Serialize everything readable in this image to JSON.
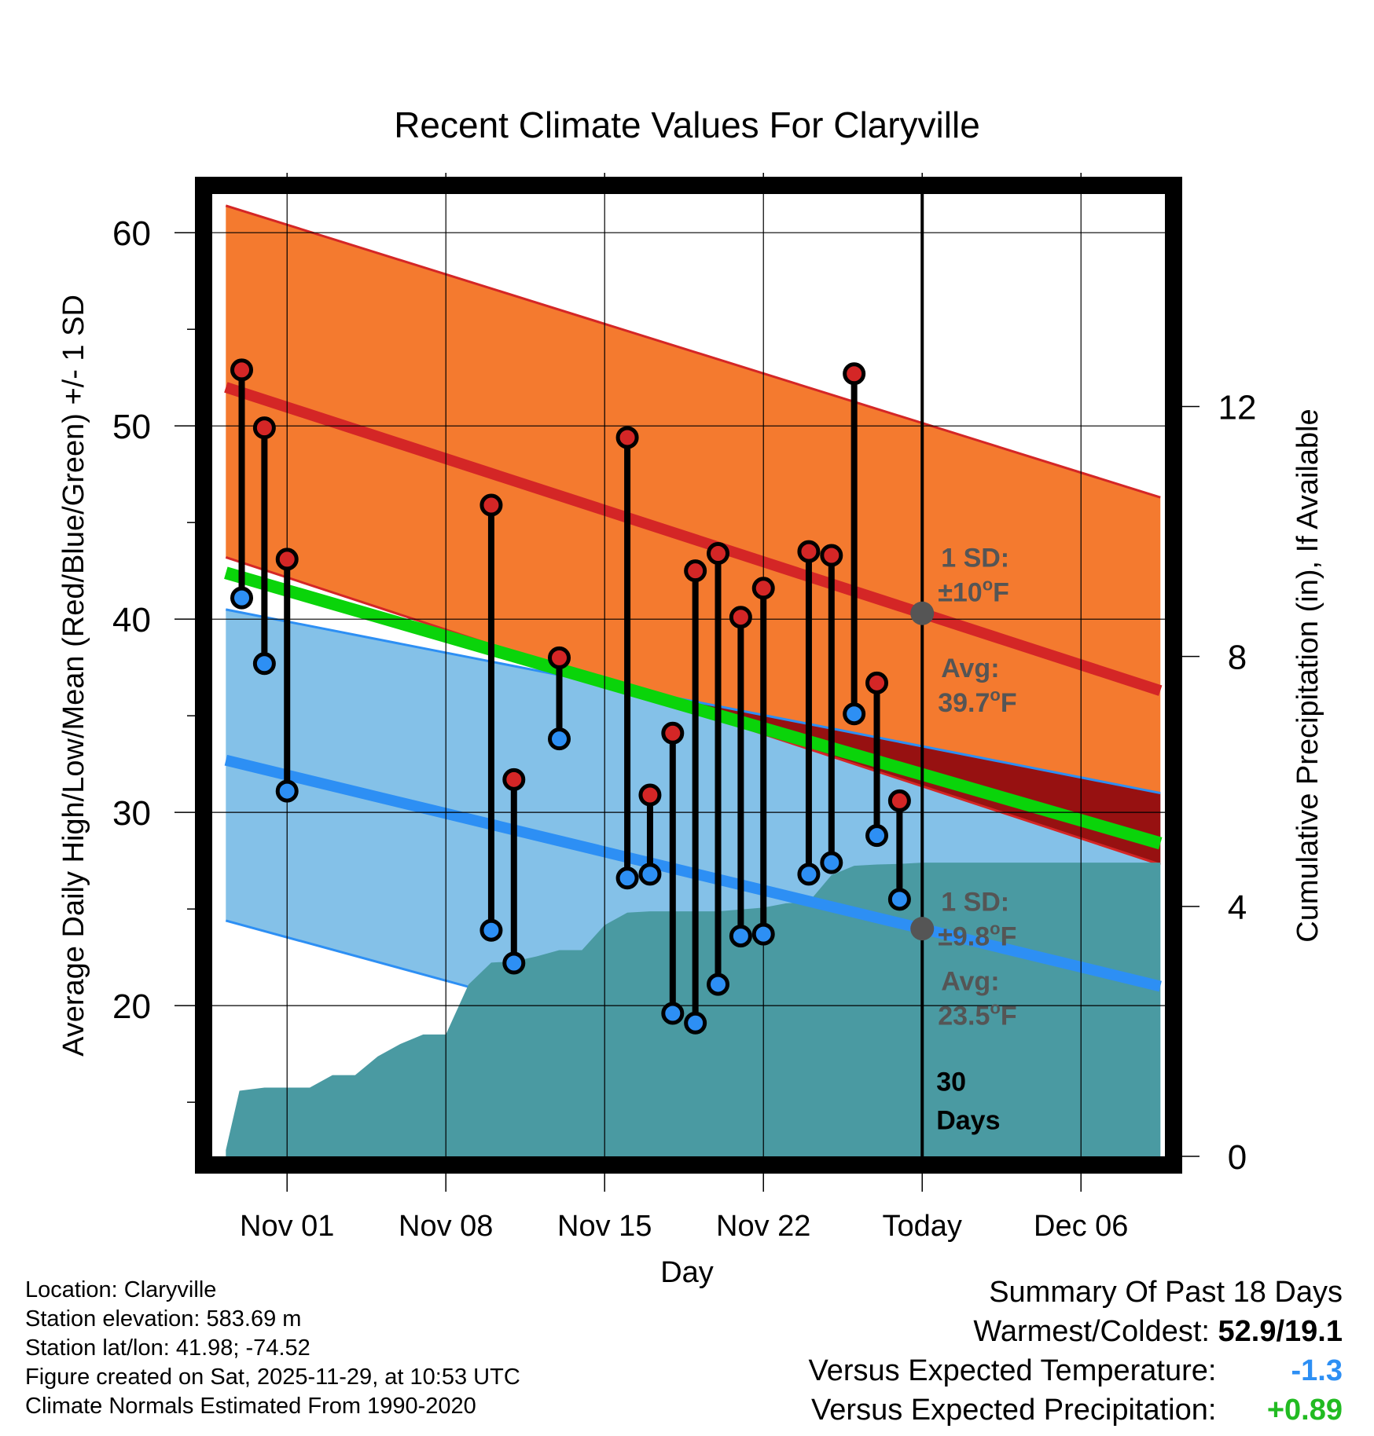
{
  "chart_data": {
    "type": "line",
    "title": "Recent Climate Values For Claryville",
    "xlabel": "Day",
    "ylabel_left": "Average Daily High/Low/Mean (Red/Blue/Green) +/- 1 SD",
    "ylabel_right": "Cumulative Precipitation (in), If Available",
    "x_unit": "day offset from Nov 01",
    "xlim": [
      -3.3,
      38.7
    ],
    "ylim": [
      12.2,
      62
    ],
    "precip_ylim": [
      0,
      15.4
    ],
    "x_ticks": [
      {
        "x": 0,
        "label": "Nov 01"
      },
      {
        "x": 7,
        "label": "Nov 08"
      },
      {
        "x": 14,
        "label": "Nov 15"
      },
      {
        "x": 21,
        "label": "Nov 22"
      },
      {
        "x": 28,
        "label": "Today"
      },
      {
        "x": 35,
        "label": "Dec 06"
      }
    ],
    "y_ticks": [
      20,
      30,
      40,
      50,
      60
    ],
    "y_minor_ticks": [
      15,
      25,
      35,
      45,
      55
    ],
    "precip_ticks": [
      0,
      4,
      8,
      12
    ],
    "normals": {
      "x": [
        -2.7,
        38.5
      ],
      "high_mean": [
        52.0,
        36.3
      ],
      "high_upper": [
        61.4,
        46.3
      ],
      "high_lower": [
        43.2,
        27.3
      ],
      "low_mean": [
        32.7,
        21.0
      ],
      "low_upper": [
        40.5,
        31.0
      ],
      "low_lower": [
        24.4,
        11.2
      ],
      "mean": [
        42.4,
        28.4
      ]
    },
    "series": [
      {
        "name": "Daily High",
        "color": "#c62a2a",
        "x": [
          -2,
          -1,
          0,
          9,
          10,
          12,
          15,
          16,
          17,
          18,
          19,
          20,
          21,
          23,
          24,
          25,
          26,
          27
        ],
        "values": [
          52.9,
          49.9,
          43.1,
          45.9,
          31.7,
          38.0,
          49.4,
          30.9,
          34.1,
          42.5,
          43.4,
          40.1,
          41.6,
          43.5,
          43.3,
          52.7,
          36.7,
          30.6
        ]
      },
      {
        "name": "Daily Low",
        "color": "#2a8cf0",
        "x": [
          -2,
          -1,
          0,
          9,
          10,
          12,
          15,
          16,
          17,
          18,
          19,
          20,
          21,
          23,
          24,
          25,
          26,
          27
        ],
        "values": [
          41.1,
          37.7,
          31.1,
          23.9,
          22.2,
          33.8,
          26.6,
          26.8,
          19.6,
          19.1,
          21.1,
          23.6,
          23.7,
          26.8,
          27.4,
          35.1,
          28.8,
          25.5
        ]
      }
    ],
    "precipitation": {
      "x": [
        -2.7,
        -2.1,
        -1,
        0,
        1,
        2,
        3,
        4,
        5,
        6,
        7,
        8,
        9,
        10,
        11,
        12,
        13,
        14,
        15,
        16,
        17,
        18,
        19,
        20,
        21,
        22,
        23,
        24,
        25,
        26,
        27,
        28,
        38.5
      ],
      "values": [
        0.1,
        1.05,
        1.1,
        1.1,
        1.1,
        1.3,
        1.3,
        1.6,
        1.8,
        1.95,
        1.95,
        2.75,
        3.1,
        3.12,
        3.2,
        3.3,
        3.3,
        3.7,
        3.9,
        3.92,
        3.92,
        3.92,
        3.92,
        3.95,
        3.98,
        4.05,
        4.07,
        4.5,
        4.65,
        4.67,
        4.68,
        4.7,
        4.7
      ]
    },
    "today_x": 28,
    "days_label": [
      "30",
      "Days"
    ],
    "annotations": {
      "high_sd": {
        "line1": "1 SD:",
        "line2": "±10",
        "unit": "F"
      },
      "high_avg": {
        "line1": "Avg:",
        "line2": "39.7",
        "unit": "F",
        "value": 39.7
      },
      "low_sd": {
        "line1": "1 SD:",
        "line2": "±9.8",
        "unit": "F"
      },
      "low_avg": {
        "line1": "Avg:",
        "line2": "23.5",
        "unit": "F",
        "value": 23.5
      }
    },
    "colors": {
      "high_band": "#f47a2f",
      "high_line": "#d42626",
      "low_band": "#84c1e8",
      "low_line": "#2d8ff4",
      "overlap": "#971111",
      "mean_line": "#0ad40a",
      "precip": "#4a9aa2",
      "annotation": "#555555"
    }
  },
  "footer_left": {
    "location": "Location: Claryville",
    "elevation": "Station elevation: 583.69 m",
    "latlon": "Station lat/lon: 41.98; -74.52",
    "created": "Figure created on Sat, 2025-11-29, at 10:53 UTC",
    "normals": "Climate Normals Estimated From 1990-2020"
  },
  "summary": {
    "heading": "Summary Of Past 18 Days",
    "warmest_label": "Warmest/Coldest:",
    "warmest_value": "52.9/19.1",
    "temp_label": "Versus Expected Temperature:",
    "temp_value": "-1.3",
    "temp_color": "#2d8ff4",
    "precip_label": "Versus Expected Precipitation:",
    "precip_value": "+0.89",
    "precip_color": "#22bb22"
  }
}
